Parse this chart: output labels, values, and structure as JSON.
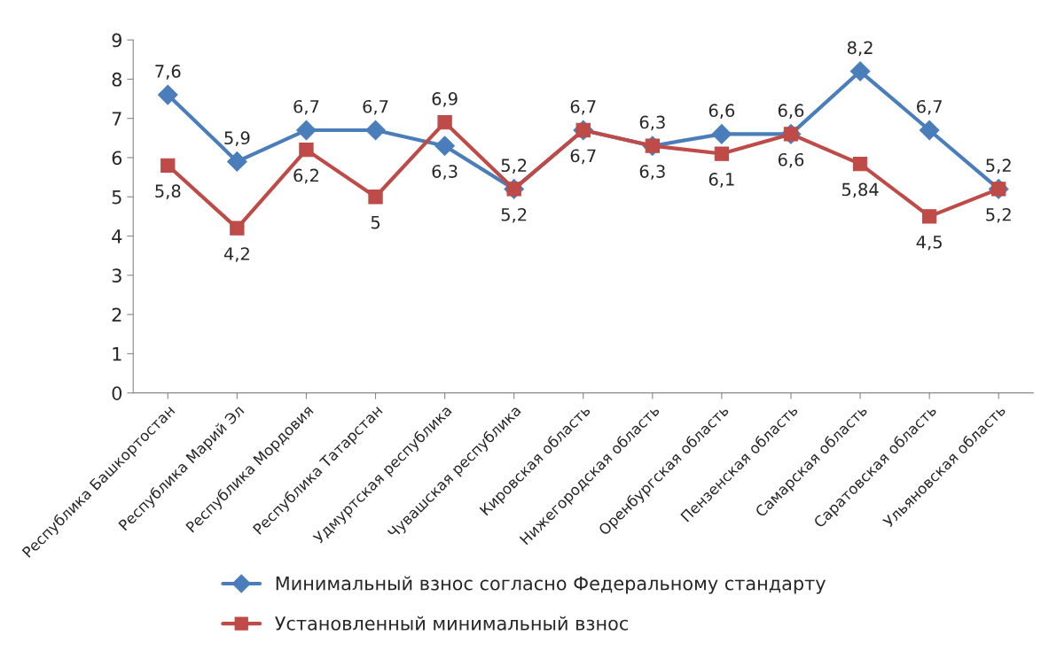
{
  "chart_data": {
    "type": "line",
    "categories": [
      "Республика Башкортостан",
      "Республика Марий Эл",
      "Республика Мордовия",
      "Республика Татарстан",
      "Удмуртская республика",
      "Чувашская республика",
      "Кировская область",
      "Нижегородская область",
      "Оренбургская область",
      "Пензенская область",
      "Самарская область",
      "Саратовская область",
      "Ульяновская область"
    ],
    "series": [
      {
        "name": "Минимальный взнос согласно Федеральному стандарту",
        "color": "#4a7ebb",
        "marker": "diamond",
        "values": [
          7.6,
          5.9,
          6.7,
          6.7,
          6.3,
          5.2,
          6.7,
          6.3,
          6.6,
          6.6,
          8.2,
          6.7,
          5.2
        ],
        "value_labels": [
          "7,6",
          "5,9",
          "6,7",
          "6,7",
          "6,3",
          "5,2",
          "6,7",
          "6,3",
          "6,6",
          "6,6",
          "8,2",
          "6,7",
          "5,2"
        ]
      },
      {
        "name": "Установленный минимальный взнос",
        "color": "#be4b48",
        "marker": "square",
        "values": [
          5.8,
          4.2,
          6.2,
          5,
          6.9,
          5.2,
          6.7,
          6.3,
          6.1,
          6.6,
          5.84,
          4.5,
          5.2
        ],
        "value_labels": [
          "5,8",
          "4,2",
          "6,2",
          "5",
          "6,9",
          "5,2",
          "6,7",
          "6,3",
          "6,1",
          "6,6",
          "5,84",
          "4,5",
          "5,2"
        ]
      }
    ],
    "ylim": [
      0,
      9
    ],
    "yticks": [
      0,
      1,
      2,
      3,
      4,
      5,
      6,
      7,
      8,
      9
    ],
    "grid": false,
    "legend": "bottom",
    "line_style": "solid"
  }
}
